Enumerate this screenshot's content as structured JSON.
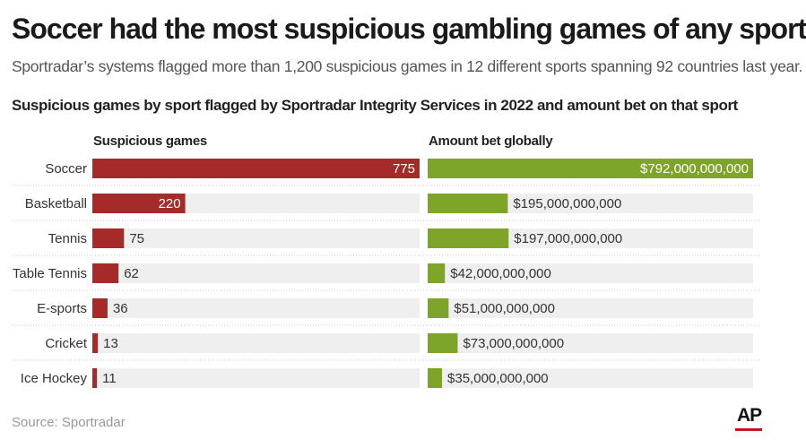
{
  "title": "Soccer had the most suspicious gambling games of any sport",
  "subtitle": "Sportradar’s systems flagged more than 1,200 suspicious games in 12 different sports spanning 92 countries last year.",
  "chart_heading": "Suspicious games by sport flagged by Sportradar Integrity Services in 2022 and amount bet on that sport",
  "source": "Source: Sportradar",
  "logo_text": "AP",
  "colors": {
    "games_bar": "#a52a2a",
    "amount_bar": "#7ea52a",
    "track": "#efefef",
    "divider": "#cccccc"
  },
  "chart_data": [
    {
      "type": "bar",
      "orientation": "horizontal",
      "column_header": "Suspicious games",
      "categories": [
        "Soccer",
        "Basketball",
        "Tennis",
        "Table Tennis",
        "E-sports",
        "Cricket",
        "Ice Hockey"
      ],
      "values": [
        775,
        220,
        75,
        62,
        36,
        13,
        11
      ],
      "value_labels": [
        "775",
        "220",
        "75",
        "62",
        "36",
        "13",
        "11"
      ],
      "xlim": [
        0,
        775
      ],
      "grid": false
    },
    {
      "type": "bar",
      "orientation": "horizontal",
      "column_header": "Amount bet globally",
      "categories": [
        "Soccer",
        "Basketball",
        "Tennis",
        "Table Tennis",
        "E-sports",
        "Cricket",
        "Ice Hockey"
      ],
      "values": [
        792000000000,
        195000000000,
        197000000000,
        42000000000,
        51000000000,
        73000000000,
        35000000000
      ],
      "value_labels": [
        "$792,000,000,000",
        "$195,000,000,000",
        "$197,000,000,000",
        "$42,000,000,000",
        "$51,000,000,000",
        "$73,000,000,000",
        "$35,000,000,000"
      ],
      "xlim": [
        0,
        792000000000
      ],
      "grid": false
    }
  ]
}
